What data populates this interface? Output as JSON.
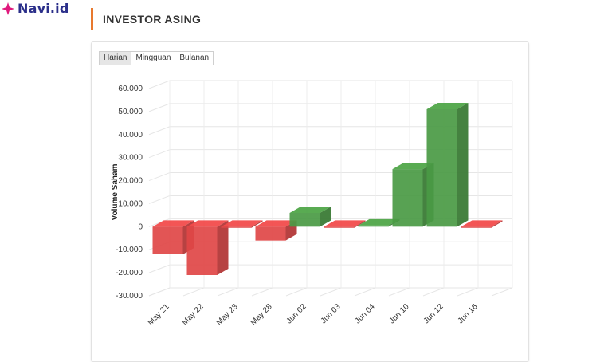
{
  "brand": {
    "name": "Navi.id",
    "color": "#e0197d"
  },
  "section": {
    "title": "INVESTOR ASING",
    "accent": "#e8792e"
  },
  "tabs": [
    {
      "label": "Harian",
      "active": true
    },
    {
      "label": "Mingguan",
      "active": false
    },
    {
      "label": "Bulanan",
      "active": false
    }
  ],
  "colors": {
    "positive": "#4a9a44",
    "negative": "#e04646"
  },
  "chart_data": {
    "type": "bar",
    "style": "3d",
    "ylabel": "Volume Saham",
    "categories": [
      "May 21",
      "May 22",
      "May 23",
      "May 28",
      "Jun 02",
      "Jun 03",
      "Jun 04",
      "Jun 10",
      "Jun 12",
      "Jun 16"
    ],
    "values": [
      -12000,
      -21000,
      -500,
      -6000,
      6000,
      -500,
      500,
      25000,
      51000,
      -500
    ],
    "ylim": [
      -30000,
      60000
    ],
    "yticks": [
      60000,
      50000,
      40000,
      30000,
      20000,
      10000,
      0,
      -10000,
      -20000,
      -30000
    ],
    "ytick_labels": [
      "60.000",
      "50.000",
      "40.000",
      "30.000",
      "20.000",
      "10.000",
      "0",
      "-10.000",
      "-20.000",
      "-30.000"
    ],
    "grid": true
  }
}
